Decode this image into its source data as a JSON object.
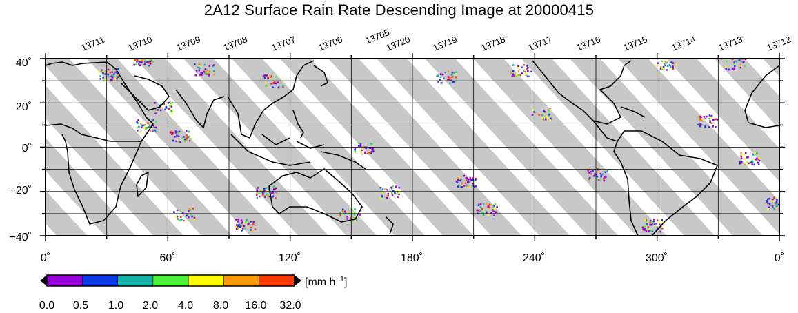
{
  "title": "2A12 Surface Rain Rate Descending Image at 20000415",
  "orbits": [
    "13711",
    "13710",
    "13709",
    "13708",
    "13707",
    "13706",
    "13705",
    "13720",
    "13719",
    "13718",
    "13717",
    "13716",
    "13715",
    "13714",
    "13713",
    "13712"
  ],
  "y_axis_labels": [
    "40˚",
    "20˚",
    "0˚",
    "−20˚",
    "−40˚"
  ],
  "x_axis_labels": [
    "0˚",
    "60˚",
    "120˚",
    "180˚",
    "240˚",
    "300˚",
    "0˚"
  ],
  "colorbar": {
    "unit_base": "[mm h",
    "unit_exp": "−1",
    "unit_close": "]",
    "tick_labels": [
      "0.0",
      "0.5",
      "1.0",
      "2.0",
      "4.0",
      "8.0",
      "16.0",
      "32.0"
    ],
    "colors": [
      "#9a00d8",
      "#0a3ae8",
      "#12b3a6",
      "#4cf23a",
      "#fdfd00",
      "#fc9a06",
      "#fd3a00"
    ]
  },
  "map": {
    "lon_range": [
      0,
      360
    ],
    "lat_range": [
      -40,
      40
    ],
    "swath_color": "#c8c8c8",
    "land_color": "#000000"
  }
}
